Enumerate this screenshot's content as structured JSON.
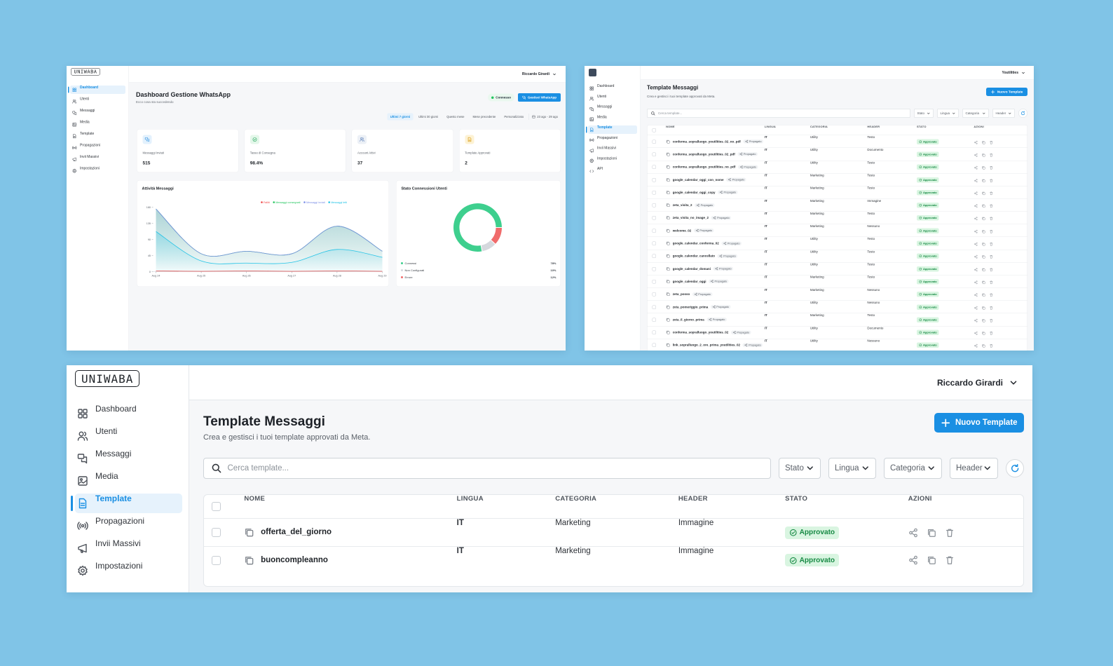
{
  "dashboard": {
    "logo": "UNIWABA",
    "user": "Riccardo Girardi",
    "nav": [
      "Dashboard",
      "Utenti",
      "Messaggi",
      "Media",
      "Template",
      "Propagazioni",
      "Invii Massivi",
      "Impostazioni"
    ],
    "title": "Dashboard Gestione WhatsApp",
    "subtitle": "Ecco cosa sta succedendo",
    "status": "Connesso",
    "manage_button": "Gestisci WhatsApp",
    "periods": [
      "Ultimi 7 giorni",
      "Ultimi 30 giorni",
      "Questo mese",
      "Mese precedente",
      "Personalizzato"
    ],
    "date_range": "23 ago - 29 ago",
    "stats": [
      {
        "label": "Messaggi Inviati",
        "value": "515"
      },
      {
        "label": "Tasso di Consegna",
        "value": "98.4%"
      },
      {
        "label": "Account Attivi",
        "value": "37"
      },
      {
        "label": "Template Approvati",
        "value": "2"
      }
    ],
    "activity_chart": {
      "type": "line",
      "title": "Attività Messaggi",
      "categories": [
        "Aug 24",
        "Aug 25",
        "Aug 26",
        "Aug 27",
        "Aug 28",
        "Aug 29"
      ],
      "series": [
        {
          "name": "Falliti",
          "color": "#ef4444",
          "values": [
            2,
            1,
            2,
            1,
            2,
            1
          ]
        },
        {
          "name": "Messaggi consegnati",
          "color": "#22c55e",
          "values": [
            175,
            50,
            57,
            50,
            127,
            57
          ]
        },
        {
          "name": "Messaggi inviati",
          "color": "#7c8fe6",
          "values": [
            175,
            50,
            57,
            50,
            127,
            57
          ]
        },
        {
          "name": "Messaggi letti",
          "color": "#22c3e6",
          "values": [
            112,
            30,
            24,
            26,
            62,
            40
          ]
        }
      ],
      "ylim": [
        0,
        180
      ],
      "yticks": [
        0,
        45,
        90,
        135,
        180
      ]
    },
    "connection_chart": {
      "type": "pie",
      "title": "Stato Connessioni Utenti",
      "categories": [
        "Connessi",
        "Non Configurati",
        "Errore"
      ],
      "values": [
        78,
        10,
        12
      ],
      "value_labels": [
        "78%",
        "10%",
        "12%"
      ],
      "colors": [
        "#3ecf8e",
        "#d5d8dd",
        "#f06b6b"
      ]
    }
  },
  "templates_list": {
    "user": "Youtilities",
    "nav": [
      "Dashboard",
      "Utenti",
      "Messaggi",
      "Media",
      "Template",
      "Propagazioni",
      "Invii Massivi",
      "Impostazioni",
      "API"
    ],
    "title": "Template Messaggi",
    "subtitle": "Crea e gestisci i tuoi template approvati da Meta.",
    "new_button": "Nuovo Template",
    "search_placeholder": "Cerca template...",
    "filters": [
      "Stato",
      "Lingua",
      "Categoria",
      "Header"
    ],
    "columns": [
      "NOME",
      "LINGUA",
      "CATEGORIA",
      "HEADER",
      "STATO",
      "AZIONI"
    ],
    "tag": "Propagato",
    "rows": [
      {
        "name": "conferma_sopralluogo_youtilities_02_no_pdf",
        "language": "IT",
        "category": "Utility",
        "header": "Testo",
        "status": "Approvato"
      },
      {
        "name": "conferma_sopralluogo_youtilities_02_pdf",
        "language": "IT",
        "category": "Utility",
        "header": "Documento",
        "status": "Approvato"
      },
      {
        "name": "conferma_sopralluogo_youtilities_no_pdf",
        "language": "IT",
        "category": "Utility",
        "header": "Testo",
        "status": "Approvato"
      },
      {
        "name": "google_calendar_oggi_con_nome",
        "language": "IT",
        "category": "Marketing",
        "header": "Testo",
        "status": "Approvato"
      },
      {
        "name": "google_calendar_oggi_copy",
        "language": "IT",
        "category": "Marketing",
        "header": "Testo",
        "status": "Approvato"
      },
      {
        "name": "zeta_visita_2",
        "language": "IT",
        "category": "Marketing",
        "header": "Immagine",
        "status": "Approvato"
      },
      {
        "name": "zeta_visita_no_image_2",
        "language": "IT",
        "category": "Marketing",
        "header": "Testo",
        "status": "Approvato"
      },
      {
        "name": "welcome_02",
        "language": "IT",
        "category": "Marketing",
        "header": "Nessuno",
        "status": "Approvato"
      },
      {
        "name": "google_calendar_conferma_02",
        "language": "IT",
        "category": "Utility",
        "header": "Testo",
        "status": "Approvato"
      },
      {
        "name": "google_calendar_cancellato",
        "language": "IT",
        "category": "Utility",
        "header": "Testo",
        "status": "Approvato"
      },
      {
        "name": "google_calendar_domani",
        "language": "IT",
        "category": "Utility",
        "header": "Testo",
        "status": "Approvato"
      },
      {
        "name": "google_calendar_oggi",
        "language": "IT",
        "category": "Marketing",
        "header": "Testo",
        "status": "Approvato"
      },
      {
        "name": "zeta_posso",
        "language": "IT",
        "category": "Marketing",
        "header": "Nessuno",
        "status": "Approvato"
      },
      {
        "name": "zeta_pomeriggio_prima",
        "language": "IT",
        "category": "Utility",
        "header": "Nessuno",
        "status": "Approvato"
      },
      {
        "name": "zeta_il_giorno_prima",
        "language": "IT",
        "category": "Marketing",
        "header": "Testo",
        "status": "Approvato"
      },
      {
        "name": "conferma_sopralluogo_youtilities_02",
        "language": "IT",
        "category": "Utility",
        "header": "Documento",
        "status": "Approvato"
      },
      {
        "name": "link_sopralluogo_2_ore_prima_youtilities_02",
        "language": "IT",
        "category": "Utility",
        "header": "Nessuno",
        "status": "Approvato"
      }
    ]
  },
  "templates": {
    "logo": "UNIWABA",
    "user": "Riccardo Girardi",
    "nav": [
      "Dashboard",
      "Utenti",
      "Messaggi",
      "Media",
      "Template",
      "Propagazioni",
      "Invii Massivi",
      "Impostazioni"
    ],
    "title": "Template Messaggi",
    "subtitle": "Crea e gestisci i tuoi template approvati da Meta.",
    "new_button": "Nuovo Template",
    "search_placeholder": "Cerca template...",
    "filters": [
      "Stato",
      "Lingua",
      "Categoria",
      "Header"
    ],
    "columns": [
      "NOME",
      "LINGUA",
      "CATEGORIA",
      "HEADER",
      "STATO",
      "AZIONI"
    ],
    "rows": [
      {
        "name": "offerta_del_giorno",
        "language": "IT",
        "category": "Marketing",
        "header": "Immagine",
        "status": "Approvato"
      },
      {
        "name": "buoncompleanno",
        "language": "IT",
        "category": "Marketing",
        "header": "Immagine",
        "status": "Approvato"
      }
    ]
  }
}
